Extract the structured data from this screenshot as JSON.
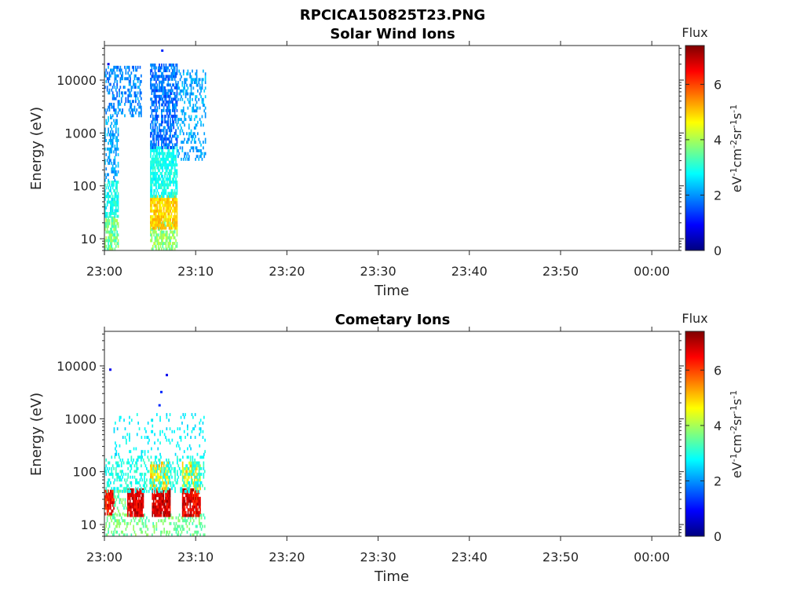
{
  "figure_title": "RPCICA150825T23.PNG",
  "colormap": [
    "#00007f",
    "#0000ff",
    "#007fff",
    "#00ffff",
    "#7fff7f",
    "#ffff00",
    "#ff7f00",
    "#ff0000",
    "#7f0000"
  ],
  "chart_data": [
    {
      "type": "heatmap",
      "title": "Solar Wind Ions",
      "xlabel": "Time",
      "ylabel": "Energy (eV)",
      "x_ticks": [
        "23:00",
        "23:10",
        "23:20",
        "23:30",
        "23:40",
        "23:50",
        "00:00"
      ],
      "x_tick_minutes": [
        0,
        10,
        20,
        30,
        40,
        50,
        60
      ],
      "xlim_minutes": [
        0,
        63
      ],
      "y_scale": "log",
      "y_ticks": [
        "10",
        "100",
        "1000",
        "10000"
      ],
      "y_tick_values": [
        10,
        100,
        1000,
        10000
      ],
      "ylim": [
        6,
        45000
      ],
      "colorbar": {
        "title": "Flux",
        "label": "eV-1cm-2sr-1s-1",
        "ticks": [
          "0",
          "2",
          "4",
          "6"
        ],
        "tick_values": [
          0,
          2,
          4,
          6
        ],
        "range": [
          0,
          7.4
        ]
      },
      "clusters": [
        {
          "t_range": [
            0,
            1.5
          ],
          "e_range": [
            6,
            25
          ],
          "flux": [
            3.0,
            4.2
          ],
          "density": 0.7
        },
        {
          "t_range": [
            0,
            1.5
          ],
          "e_range": [
            25,
            120
          ],
          "flux": [
            2.5,
            3.3
          ],
          "density": 0.6
        },
        {
          "t_range": [
            0,
            1.5
          ],
          "e_range": [
            120,
            2000
          ],
          "flux": [
            1.8,
            2.5
          ],
          "density": 0.4
        },
        {
          "t_range": [
            0,
            4
          ],
          "e_range": [
            2000,
            18000
          ],
          "flux": [
            1.5,
            2.3
          ],
          "density": 0.35
        },
        {
          "t_range": [
            5,
            8
          ],
          "e_range": [
            6,
            25
          ],
          "flux": [
            3.2,
            4.3
          ],
          "density": 0.6
        },
        {
          "t_range": [
            5,
            8
          ],
          "e_range": [
            15,
            60
          ],
          "flux": [
            4.5,
            5.3
          ],
          "density": 0.85
        },
        {
          "t_range": [
            5,
            8
          ],
          "e_range": [
            60,
            500
          ],
          "flux": [
            2.6,
            3.2
          ],
          "density": 0.7
        },
        {
          "t_range": [
            5,
            8
          ],
          "e_range": [
            500,
            20000
          ],
          "flux": [
            1.3,
            2.2
          ],
          "density": 0.6
        },
        {
          "t_range": [
            8,
            11
          ],
          "e_range": [
            300,
            15000
          ],
          "flux": [
            1.8,
            2.5
          ],
          "density": 0.3
        }
      ],
      "isolated_points": [
        {
          "t_min": 0.4,
          "energy_eV": 20000,
          "flux": 0.8
        },
        {
          "t_min": 6.3,
          "energy_eV": 36000,
          "flux": 1.2
        }
      ]
    },
    {
      "type": "heatmap",
      "title": "Cometary Ions",
      "xlabel": "Time",
      "ylabel": "Energy (eV)",
      "x_ticks": [
        "23:00",
        "23:10",
        "23:20",
        "23:30",
        "23:40",
        "23:50",
        "00:00"
      ],
      "x_tick_minutes": [
        0,
        10,
        20,
        30,
        40,
        50,
        60
      ],
      "xlim_minutes": [
        0,
        63
      ],
      "y_scale": "log",
      "y_ticks": [
        "10",
        "100",
        "1000",
        "10000"
      ],
      "y_tick_values": [
        10,
        100,
        1000,
        10000
      ],
      "ylim": [
        6,
        45000
      ],
      "colorbar": {
        "title": "Flux",
        "label": "eV-1cm-2sr-1s-1",
        "ticks": [
          "0",
          "2",
          "4",
          "6"
        ],
        "tick_values": [
          0,
          2,
          4,
          6
        ],
        "range": [
          0,
          7.4
        ]
      },
      "clusters": [
        {
          "t_range": [
            0,
            11
          ],
          "e_range": [
            6,
            15
          ],
          "flux": [
            3.2,
            4.0
          ],
          "density": 0.25
        },
        {
          "t_range": [
            0,
            1
          ],
          "e_range": [
            15,
            45
          ],
          "flux": [
            5.8,
            7.0
          ],
          "density": 0.8
        },
        {
          "t_range": [
            2.5,
            4.3
          ],
          "e_range": [
            14,
            45
          ],
          "flux": [
            6.2,
            7.2
          ],
          "density": 0.85
        },
        {
          "t_range": [
            5.2,
            7.2
          ],
          "e_range": [
            14,
            45
          ],
          "flux": [
            6.2,
            7.3
          ],
          "density": 0.85
        },
        {
          "t_range": [
            8.5,
            10.5
          ],
          "e_range": [
            14,
            45
          ],
          "flux": [
            6.0,
            7.2
          ],
          "density": 0.85
        },
        {
          "t_range": [
            1,
            2.5
          ],
          "e_range": [
            15,
            45
          ],
          "flux": [
            3.0,
            4.0
          ],
          "density": 0.35
        },
        {
          "t_range": [
            5,
            7
          ],
          "e_range": [
            45,
            150
          ],
          "flux": [
            4.2,
            5.3
          ],
          "density": 0.6
        },
        {
          "t_range": [
            8.5,
            10.5
          ],
          "e_range": [
            45,
            150
          ],
          "flux": [
            4.0,
            5.2
          ],
          "density": 0.5
        },
        {
          "t_range": [
            0,
            11
          ],
          "e_range": [
            40,
            200
          ],
          "flux": [
            2.6,
            3.3
          ],
          "density": 0.3
        },
        {
          "t_range": [
            1,
            11
          ],
          "e_range": [
            200,
            1200
          ],
          "flux": [
            2.4,
            3.0
          ],
          "density": 0.1
        }
      ],
      "isolated_points": [
        {
          "t_min": 0.6,
          "energy_eV": 8500,
          "flux": 0.8
        },
        {
          "t_min": 6.8,
          "energy_eV": 6700,
          "flux": 0.8
        },
        {
          "t_min": 6.2,
          "energy_eV": 3200,
          "flux": 1.2
        },
        {
          "t_min": 6.0,
          "energy_eV": 1800,
          "flux": 1.2
        }
      ]
    }
  ]
}
